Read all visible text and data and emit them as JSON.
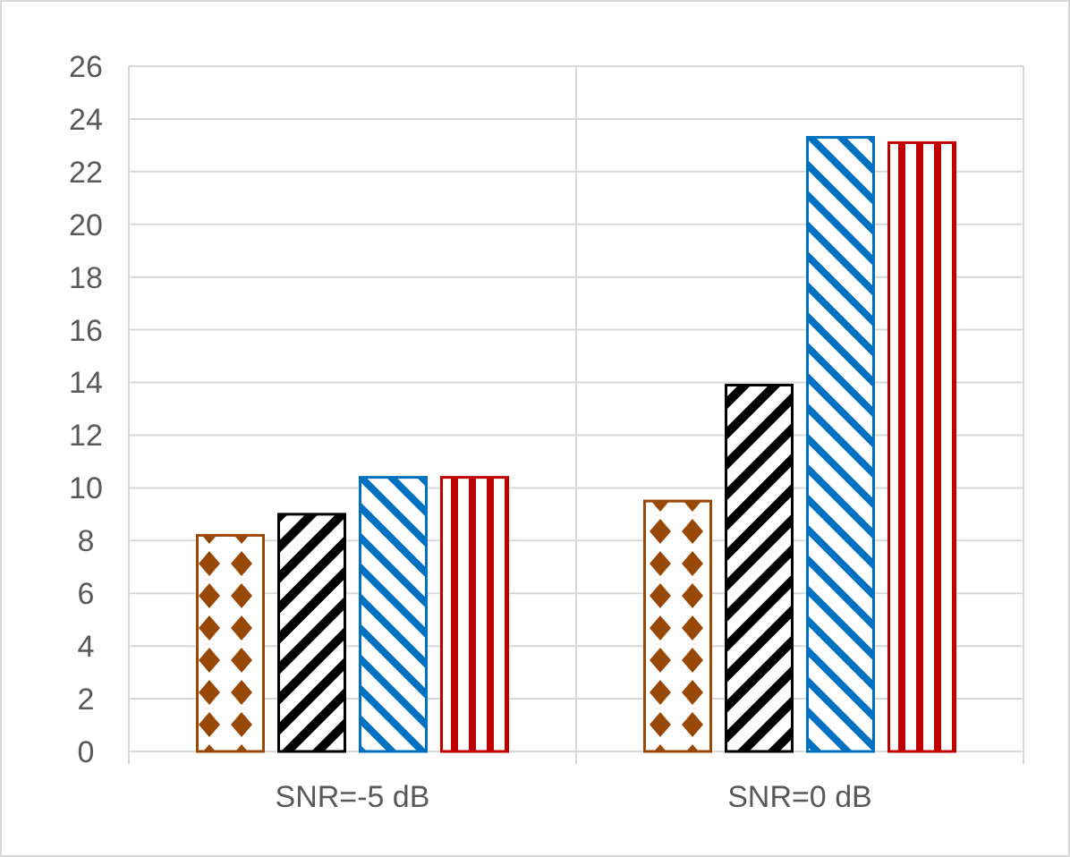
{
  "chart_data": {
    "type": "bar",
    "categories": [
      "SNR=-5 dB",
      "SNR=0 dB"
    ],
    "series": [
      {
        "color": "#984807",
        "values": [
          8.2,
          9.5
        ]
      },
      {
        "color": "#000000",
        "values": [
          9.0,
          13.9
        ]
      },
      {
        "color": "#0070c0",
        "values": [
          10.4,
          23.3
        ]
      },
      {
        "color": "#c00000",
        "values": [
          10.4,
          23.1
        ]
      }
    ],
    "ylim": [
      0,
      26
    ],
    "yticks": [
      0,
      2,
      4,
      6,
      8,
      10,
      12,
      14,
      16,
      18,
      20,
      22,
      24,
      26
    ],
    "grid": true
  }
}
